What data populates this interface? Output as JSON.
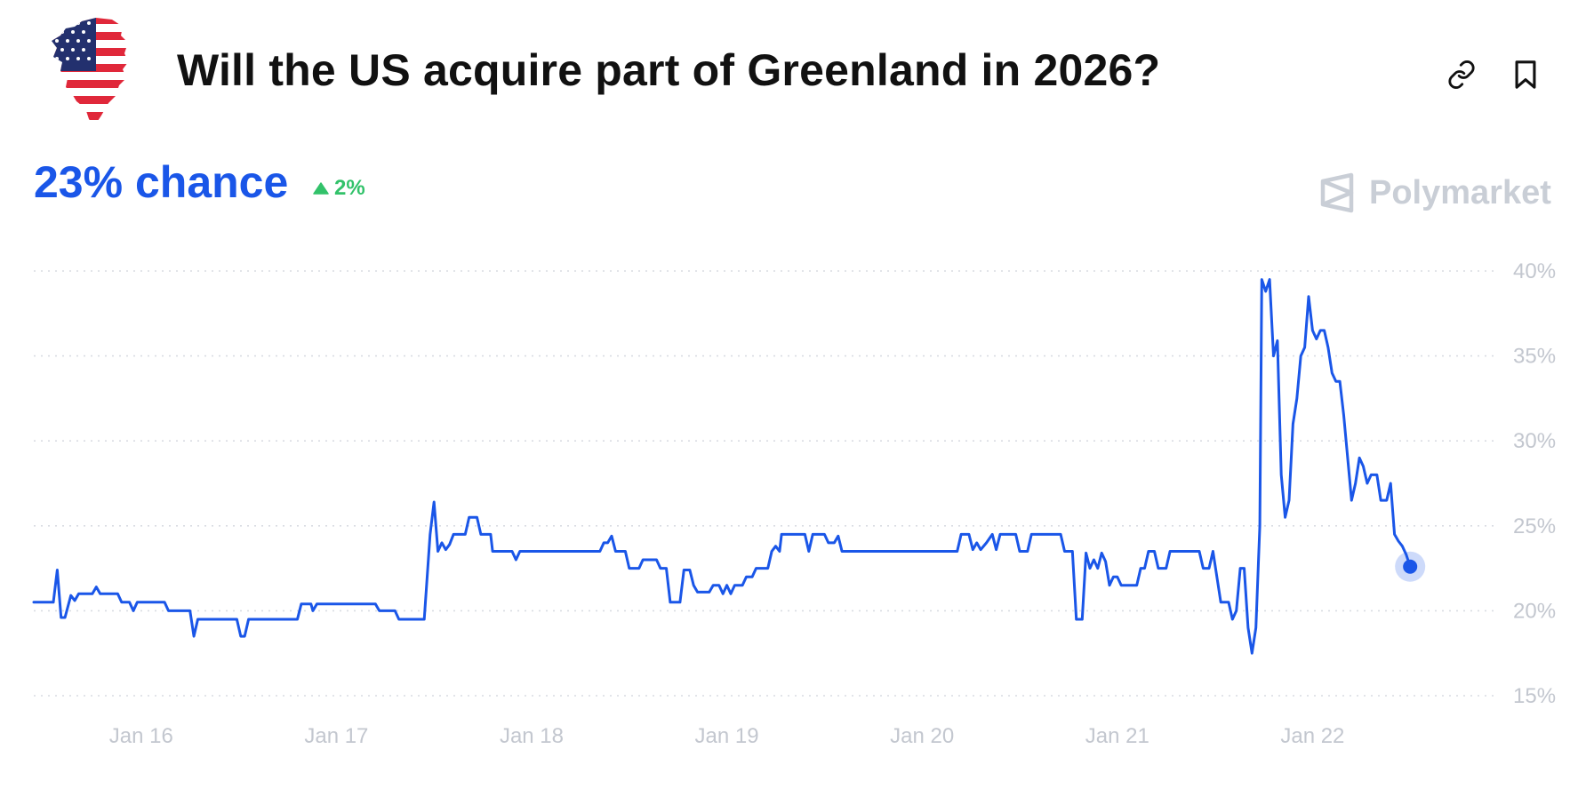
{
  "header": {
    "title": "Will the US acquire part of Greenland in 2026?",
    "link_icon": "link-icon",
    "bookmark_icon": "bookmark-icon",
    "image_icon": "greenland-us-flag-icon"
  },
  "summary": {
    "chance_text": "23% chance",
    "change_text": "2%",
    "change_direction": "up",
    "change_color": "#32c26a"
  },
  "brand": {
    "name": "Polymarket",
    "logo_icon": "polymarket-logo-icon"
  },
  "colors": {
    "accent": "#1a56e8",
    "muted": "#c3c7cf"
  },
  "chart_data": {
    "type": "line",
    "title": "",
    "xlabel": "",
    "ylabel": "",
    "ylim": [
      15,
      40
    ],
    "y_ticks": [
      40,
      35,
      30,
      25,
      20,
      15
    ],
    "y_tick_labels": [
      "40%",
      "35%",
      "30%",
      "25%",
      "20%",
      "15%"
    ],
    "x_tick_labels": [
      "Jan 16",
      "Jan 17",
      "Jan 18",
      "Jan 19",
      "Jan 20",
      "Jan 21",
      "Jan 22"
    ],
    "x_tick_positions": [
      16,
      17,
      18,
      19,
      20,
      21,
      22
    ],
    "xlim": [
      15.45,
      22.95
    ],
    "grid": true,
    "grid_style": "dotted-horizontal",
    "end_marker": true,
    "series": [
      {
        "values": [
          [
            15.45,
            20.5
          ],
          [
            15.55,
            20.5
          ],
          [
            15.57,
            22.4
          ],
          [
            15.59,
            19.6
          ],
          [
            15.61,
            19.6
          ],
          [
            15.64,
            20.9
          ],
          [
            15.66,
            20.6
          ],
          [
            15.68,
            21.0
          ],
          [
            15.75,
            21.0
          ],
          [
            15.77,
            21.4
          ],
          [
            15.79,
            21.0
          ],
          [
            15.88,
            21.0
          ],
          [
            15.9,
            20.5
          ],
          [
            15.94,
            20.5
          ],
          [
            15.96,
            20.0
          ],
          [
            15.98,
            20.5
          ],
          [
            16.12,
            20.5
          ],
          [
            16.14,
            20.0
          ],
          [
            16.25,
            20.0
          ],
          [
            16.27,
            18.5
          ],
          [
            16.29,
            19.5
          ],
          [
            16.49,
            19.5
          ],
          [
            16.51,
            18.5
          ],
          [
            16.53,
            18.5
          ],
          [
            16.55,
            19.5
          ],
          [
            16.8,
            19.5
          ],
          [
            16.82,
            20.4
          ],
          [
            16.87,
            20.4
          ],
          [
            16.88,
            20.0
          ],
          [
            16.9,
            20.4
          ],
          [
            17.2,
            20.4
          ],
          [
            17.22,
            20.0
          ],
          [
            17.3,
            20.0
          ],
          [
            17.32,
            19.5
          ],
          [
            17.45,
            19.5
          ],
          [
            17.48,
            24.5
          ],
          [
            17.5,
            26.4
          ],
          [
            17.52,
            23.5
          ],
          [
            17.54,
            24.0
          ],
          [
            17.56,
            23.6
          ],
          [
            17.58,
            23.9
          ],
          [
            17.6,
            24.5
          ],
          [
            17.66,
            24.5
          ],
          [
            17.68,
            25.5
          ],
          [
            17.72,
            25.5
          ],
          [
            17.74,
            24.5
          ],
          [
            17.79,
            24.5
          ],
          [
            17.8,
            23.5
          ],
          [
            17.9,
            23.5
          ],
          [
            17.92,
            23.0
          ],
          [
            17.94,
            23.5
          ],
          [
            18.35,
            23.5
          ],
          [
            18.37,
            24.0
          ],
          [
            18.39,
            24.0
          ],
          [
            18.41,
            24.4
          ],
          [
            18.43,
            23.5
          ],
          [
            18.48,
            23.5
          ],
          [
            18.5,
            22.5
          ],
          [
            18.55,
            22.5
          ],
          [
            18.57,
            23.0
          ],
          [
            18.64,
            23.0
          ],
          [
            18.66,
            22.5
          ],
          [
            18.69,
            22.5
          ],
          [
            18.71,
            20.5
          ],
          [
            18.76,
            20.5
          ],
          [
            18.78,
            22.4
          ],
          [
            18.81,
            22.4
          ],
          [
            18.83,
            21.5
          ],
          [
            18.85,
            21.1
          ],
          [
            18.91,
            21.1
          ],
          [
            18.93,
            21.5
          ],
          [
            18.96,
            21.5
          ],
          [
            18.98,
            21.0
          ],
          [
            19.0,
            21.5
          ],
          [
            19.02,
            21.0
          ],
          [
            19.04,
            21.5
          ],
          [
            19.08,
            21.5
          ],
          [
            19.1,
            22.0
          ],
          [
            19.13,
            22.0
          ],
          [
            19.15,
            22.5
          ],
          [
            19.21,
            22.5
          ],
          [
            19.23,
            23.5
          ],
          [
            19.25,
            23.8
          ],
          [
            19.27,
            23.5
          ],
          [
            19.28,
            24.5
          ],
          [
            19.4,
            24.5
          ],
          [
            19.42,
            23.5
          ],
          [
            19.44,
            24.5
          ],
          [
            19.5,
            24.5
          ],
          [
            19.52,
            24.0
          ],
          [
            19.55,
            24.0
          ],
          [
            19.57,
            24.4
          ],
          [
            19.59,
            23.5
          ],
          [
            20.18,
            23.5
          ],
          [
            20.2,
            24.5
          ],
          [
            20.24,
            24.5
          ],
          [
            20.26,
            23.6
          ],
          [
            20.28,
            24.0
          ],
          [
            20.3,
            23.6
          ],
          [
            20.33,
            24.0
          ],
          [
            20.36,
            24.5
          ],
          [
            20.38,
            23.6
          ],
          [
            20.4,
            24.5
          ],
          [
            20.48,
            24.5
          ],
          [
            20.5,
            23.5
          ],
          [
            20.54,
            23.5
          ],
          [
            20.56,
            24.5
          ],
          [
            20.71,
            24.5
          ],
          [
            20.73,
            23.5
          ],
          [
            20.77,
            23.5
          ],
          [
            20.79,
            19.5
          ],
          [
            20.82,
            19.5
          ],
          [
            20.84,
            23.4
          ],
          [
            20.86,
            22.5
          ],
          [
            20.88,
            23.0
          ],
          [
            20.9,
            22.5
          ],
          [
            20.92,
            23.4
          ],
          [
            20.94,
            22.9
          ],
          [
            20.96,
            21.5
          ],
          [
            20.98,
            22.0
          ],
          [
            21.0,
            22.0
          ],
          [
            21.02,
            21.5
          ],
          [
            21.1,
            21.5
          ],
          [
            21.12,
            22.5
          ],
          [
            21.14,
            22.5
          ],
          [
            21.16,
            23.5
          ],
          [
            21.19,
            23.5
          ],
          [
            21.21,
            22.5
          ],
          [
            21.25,
            22.5
          ],
          [
            21.27,
            23.5
          ],
          [
            21.42,
            23.5
          ],
          [
            21.44,
            22.5
          ],
          [
            21.47,
            22.5
          ],
          [
            21.49,
            23.5
          ],
          [
            21.51,
            22.0
          ],
          [
            21.53,
            20.5
          ],
          [
            21.57,
            20.5
          ],
          [
            21.59,
            19.5
          ],
          [
            21.61,
            20.0
          ],
          [
            21.63,
            22.5
          ],
          [
            21.65,
            22.5
          ],
          [
            21.67,
            19.0
          ],
          [
            21.69,
            17.5
          ],
          [
            21.71,
            19.0
          ],
          [
            21.73,
            25.0
          ],
          [
            21.74,
            39.5
          ],
          [
            21.76,
            38.8
          ],
          [
            21.78,
            39.5
          ],
          [
            21.8,
            35.0
          ],
          [
            21.82,
            35.9
          ],
          [
            21.84,
            28.0
          ],
          [
            21.86,
            25.5
          ],
          [
            21.88,
            26.5
          ],
          [
            21.9,
            31.0
          ],
          [
            21.92,
            32.5
          ],
          [
            21.94,
            35.0
          ],
          [
            21.96,
            35.5
          ],
          [
            21.98,
            38.5
          ],
          [
            22.0,
            36.5
          ],
          [
            22.02,
            36.0
          ],
          [
            22.04,
            36.5
          ],
          [
            22.06,
            36.5
          ],
          [
            22.08,
            35.5
          ],
          [
            22.1,
            34.0
          ],
          [
            22.12,
            33.5
          ],
          [
            22.14,
            33.5
          ],
          [
            22.16,
            31.5
          ],
          [
            22.18,
            29.0
          ],
          [
            22.2,
            26.5
          ],
          [
            22.22,
            27.5
          ],
          [
            22.24,
            29.0
          ],
          [
            22.26,
            28.5
          ],
          [
            22.28,
            27.5
          ],
          [
            22.3,
            28.0
          ],
          [
            22.33,
            28.0
          ],
          [
            22.35,
            26.5
          ],
          [
            22.38,
            26.5
          ],
          [
            22.4,
            27.5
          ],
          [
            22.42,
            24.5
          ],
          [
            22.44,
            24.1
          ],
          [
            22.46,
            23.8
          ],
          [
            22.48,
            23.3
          ],
          [
            22.5,
            22.6
          ]
        ]
      }
    ]
  }
}
